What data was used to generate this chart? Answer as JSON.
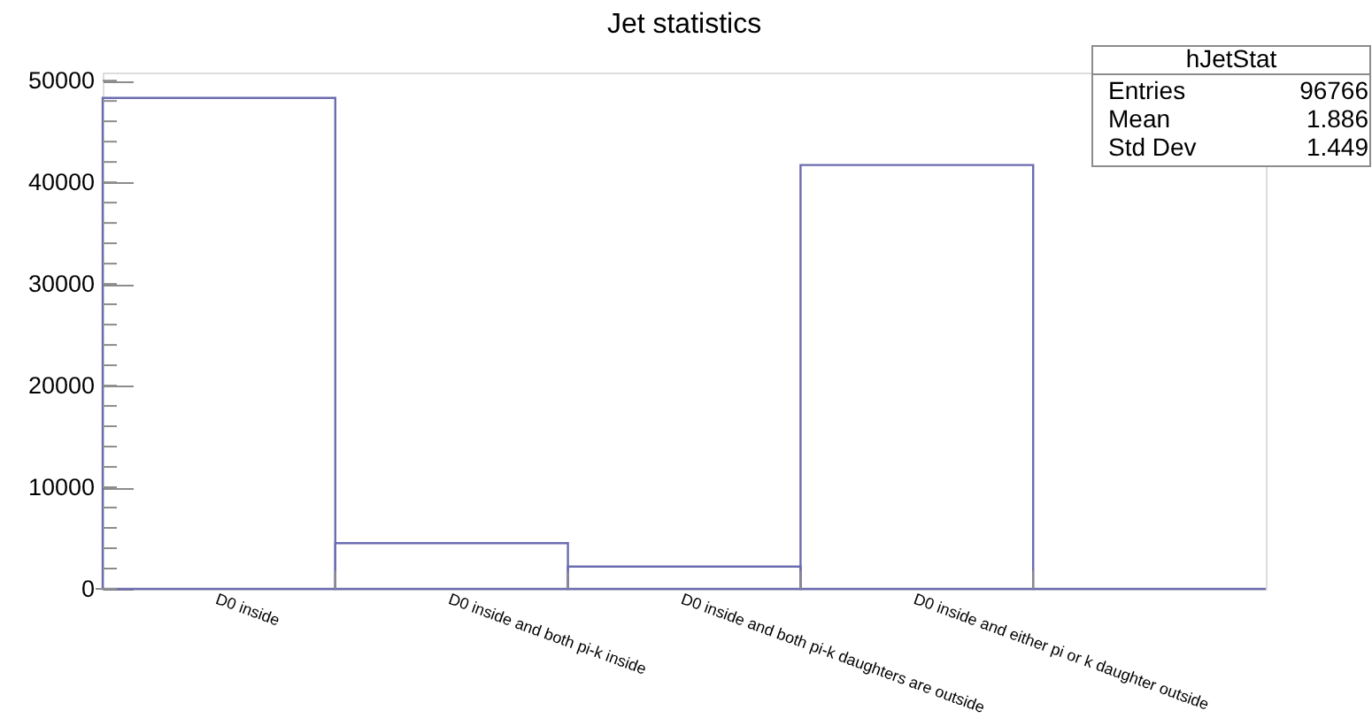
{
  "chart_data": {
    "type": "bar",
    "title": "Jet statistics",
    "categories": [
      "D0 inside",
      "D0 inside and both pi-k inside",
      "D0 inside and both pi-k daughters are outside",
      "D0 inside and either pi or k daughter outside",
      null
    ],
    "values": [
      48300,
      4500,
      2200,
      41700,
      0
    ],
    "color": "#6c6cb0",
    "ylim": [
      0,
      50800
    ],
    "yticks": [
      0,
      {
        "value": 2000,
        "label": null
      },
      {
        "value": 4000,
        "label": null
      },
      {
        "value": 6000,
        "label": null
      },
      {
        "value": 8000,
        "label": null
      },
      10000,
      {
        "value": 12000,
        "label": null
      },
      {
        "value": 14000,
        "label": null
      },
      {
        "value": 16000,
        "label": null
      },
      {
        "value": 18000,
        "label": null
      },
      20000,
      {
        "value": 22000,
        "label": null
      },
      {
        "value": 24000,
        "label": null
      },
      {
        "value": 26000,
        "label": null
      },
      {
        "value": 28000,
        "label": null
      },
      30000,
      {
        "value": 32000,
        "label": null
      },
      {
        "value": 34000,
        "label": null
      },
      {
        "value": 36000,
        "label": null
      },
      {
        "value": 38000,
        "label": null
      },
      40000,
      {
        "value": 42000,
        "label": null
      },
      {
        "value": 44000,
        "label": null
      },
      {
        "value": 46000,
        "label": null
      },
      {
        "value": 48000,
        "label": null
      },
      50000
    ],
    "annotations": [
      "hJetStat",
      "Entries",
      "96766",
      "Mean",
      "1.886",
      "Std Dev",
      "1.449"
    ]
  }
}
